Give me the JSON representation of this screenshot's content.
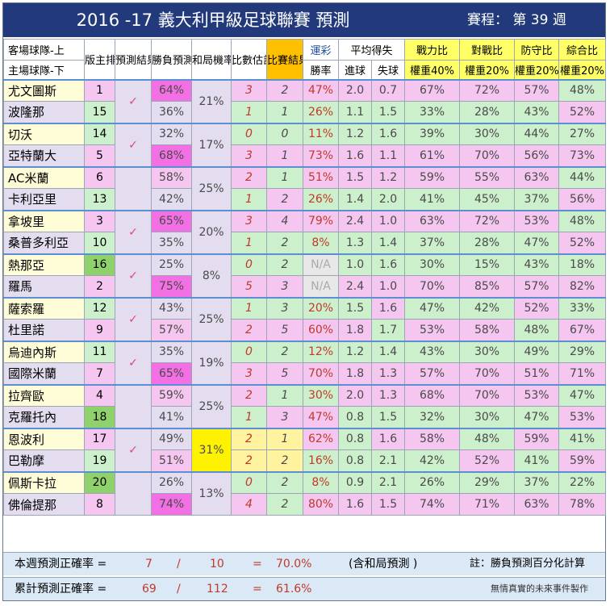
{
  "header": {
    "title": "2016 -17  義大利甲級足球聯賽  預測",
    "round": "賽程：  第 39 週"
  },
  "columns": {
    "teams_top": "客場球隊-上",
    "teams_bottom": "主場球隊-下",
    "rank": "版主排名",
    "pred": "預測結果",
    "winlose": "勝負預測",
    "draw": "和局機率",
    "score_est": "比數估計",
    "result": "比賽結果",
    "lottery": "運彩",
    "avg_goals": "平均得失",
    "power": "戰力比",
    "h2h": "對戰比",
    "defense": "防守比",
    "overall": "綜合比",
    "lottery_sub": "勝率",
    "goals_for": "進球",
    "goals_against": "失球",
    "power_w": "權重40%",
    "h2h_w": "權重20%",
    "defense_w": "權重20%",
    "overall_w": "權重20%"
  },
  "matches": [
    {
      "tick": "✓",
      "draw": "21%",
      "teams": [
        {
          "team": "尤文圖斯",
          "rank": "1",
          "win": "64%",
          "est": "3",
          "res": "2",
          "lot": "47%",
          "gf": "2.0",
          "ga": "0.7",
          "pow": "67%",
          "h2h": "72%",
          "def": "57%",
          "ov": "48%"
        },
        {
          "team": "波隆那",
          "rank": "15",
          "win": "36%",
          "est": "1",
          "res": "1",
          "lot": "26%",
          "gf": "1.1",
          "ga": "1.5",
          "pow": "33%",
          "h2h": "28%",
          "def": "43%",
          "ov": "52%"
        }
      ]
    },
    {
      "tick": "✓",
      "draw": "17%",
      "teams": [
        {
          "team": "切沃",
          "rank": "14",
          "win": "32%",
          "est": "0",
          "res": "0",
          "lot": "11%",
          "gf": "1.2",
          "ga": "1.6",
          "pow": "39%",
          "h2h": "30%",
          "def": "44%",
          "ov": "27%"
        },
        {
          "team": "亞特蘭大",
          "rank": "5",
          "win": "68%",
          "est": "3",
          "res": "1",
          "lot": "73%",
          "gf": "1.6",
          "ga": "1.1",
          "pow": "61%",
          "h2h": "70%",
          "def": "56%",
          "ov": "73%"
        }
      ]
    },
    {
      "tick": "",
      "draw": "25%",
      "teams": [
        {
          "team": "AC米蘭",
          "rank": "6",
          "win": "58%",
          "est": "2",
          "res": "1",
          "lot": "51%",
          "gf": "1.5",
          "ga": "1.2",
          "pow": "59%",
          "h2h": "55%",
          "def": "63%",
          "ov": "44%"
        },
        {
          "team": "卡利亞里",
          "rank": "13",
          "win": "42%",
          "est": "1",
          "res": "2",
          "lot": "26%",
          "gf": "1.4",
          "ga": "2.0",
          "pow": "41%",
          "h2h": "45%",
          "def": "37%",
          "ov": "56%"
        }
      ]
    },
    {
      "tick": "✓",
      "draw": "20%",
      "teams": [
        {
          "team": "拿坡里",
          "rank": "3",
          "win": "65%",
          "est": "3",
          "res": "4",
          "lot": "79%",
          "gf": "2.4",
          "ga": "1.0",
          "pow": "63%",
          "h2h": "72%",
          "def": "53%",
          "ov": "48%"
        },
        {
          "team": "桑普多利亞",
          "rank": "10",
          "win": "35%",
          "est": "1",
          "res": "2",
          "lot": "8%",
          "gf": "1.3",
          "ga": "1.4",
          "pow": "37%",
          "h2h": "28%",
          "def": "47%",
          "ov": "52%"
        }
      ]
    },
    {
      "tick": "✓",
      "draw": "8%",
      "teams": [
        {
          "team": "熱那亞",
          "rank": "16",
          "win": "25%",
          "est": "0",
          "res": "2",
          "lot": "N/A",
          "gf": "1.0",
          "ga": "1.6",
          "pow": "30%",
          "h2h": "15%",
          "def": "43%",
          "ov": "18%"
        },
        {
          "team": "羅馬",
          "rank": "2",
          "win": "75%",
          "est": "5",
          "res": "3",
          "lot": "N/A",
          "gf": "2.4",
          "ga": "1.0",
          "pow": "70%",
          "h2h": "85%",
          "def": "57%",
          "ov": "82%"
        }
      ]
    },
    {
      "tick": "✓",
      "draw": "25%",
      "teams": [
        {
          "team": "薩索羅",
          "rank": "12",
          "win": "43%",
          "est": "1",
          "res": "3",
          "lot": "20%",
          "gf": "1.5",
          "ga": "1.6",
          "pow": "47%",
          "h2h": "42%",
          "def": "52%",
          "ov": "33%"
        },
        {
          "team": "杜里諾",
          "rank": "9",
          "win": "57%",
          "est": "2",
          "res": "5",
          "lot": "60%",
          "gf": "1.8",
          "ga": "1.7",
          "pow": "53%",
          "h2h": "58%",
          "def": "48%",
          "ov": "67%"
        }
      ]
    },
    {
      "tick": "✓",
      "draw": "19%",
      "teams": [
        {
          "team": "烏迪內斯",
          "rank": "11",
          "win": "35%",
          "est": "0",
          "res": "2",
          "lot": "12%",
          "gf": "1.2",
          "ga": "1.4",
          "pow": "43%",
          "h2h": "30%",
          "def": "49%",
          "ov": "29%"
        },
        {
          "team": "國際米蘭",
          "rank": "7",
          "win": "65%",
          "est": "3",
          "res": "5",
          "lot": "70%",
          "gf": "1.8",
          "ga": "1.3",
          "pow": "57%",
          "h2h": "70%",
          "def": "51%",
          "ov": "71%"
        }
      ]
    },
    {
      "tick": "",
      "draw": "25%",
      "teams": [
        {
          "team": "拉齊歐",
          "rank": "4",
          "win": "59%",
          "est": "2",
          "res": "1",
          "lot": "30%",
          "gf": "2.0",
          "ga": "1.3",
          "pow": "68%",
          "h2h": "70%",
          "def": "53%",
          "ov": "47%"
        },
        {
          "team": "克羅托內",
          "rank": "18",
          "win": "41%",
          "est": "1",
          "res": "3",
          "lot": "47%",
          "gf": "0.8",
          "ga": "1.5",
          "pow": "32%",
          "h2h": "30%",
          "def": "47%",
          "ov": "53%"
        }
      ]
    },
    {
      "tick": "✓",
      "draw": "31%",
      "teams": [
        {
          "team": "恩波利",
          "rank": "17",
          "win": "49%",
          "est": "2",
          "res": "1",
          "lot": "62%",
          "gf": "0.8",
          "ga": "1.6",
          "pow": "58%",
          "h2h": "48%",
          "def": "59%",
          "ov": "41%"
        },
        {
          "team": "巴勒摩",
          "rank": "19",
          "win": "51%",
          "est": "2",
          "res": "2",
          "lot": "16%",
          "gf": "0.8",
          "ga": "2.1",
          "pow": "42%",
          "h2h": "52%",
          "def": "41%",
          "ov": "59%"
        }
      ]
    },
    {
      "tick": "",
      "draw": "13%",
      "teams": [
        {
          "team": "佩斯卡拉",
          "rank": "20",
          "win": "26%",
          "est": "0",
          "res": "2",
          "lot": "8%",
          "gf": "0.9",
          "ga": "2.1",
          "pow": "26%",
          "h2h": "29%",
          "def": "37%",
          "ov": "22%"
        },
        {
          "team": "佛倫提那",
          "rank": "8",
          "win": "74%",
          "est": "4",
          "res": "2",
          "lot": "80%",
          "gf": "1.6",
          "ga": "1.5",
          "pow": "74%",
          "h2h": "71%",
          "def": "63%",
          "ov": "78%"
        }
      ]
    }
  ],
  "footer": {
    "week_label": "本週預測正確率 =",
    "week_correct": "7",
    "slash": "/",
    "week_total": "10",
    "eq": "=",
    "week_rate": "70.0%",
    "week_note": "(含和局預測 )",
    "note": "註：勝負預測百分化計算",
    "cum_label": "累計預測正確率 =",
    "cum_correct": "69",
    "cum_total": "112",
    "cum_rate": "61.6%",
    "credit": "無情真實的未來事件製作"
  },
  "colors": {
    "title_bg": "#223a7b",
    "pink": "#f5c6f0",
    "green": "#ccefcc",
    "magenta": "#f26fe4",
    "lavender": "#e4ddf0",
    "yellow": "#fff200",
    "cream": "#fffcd8"
  }
}
